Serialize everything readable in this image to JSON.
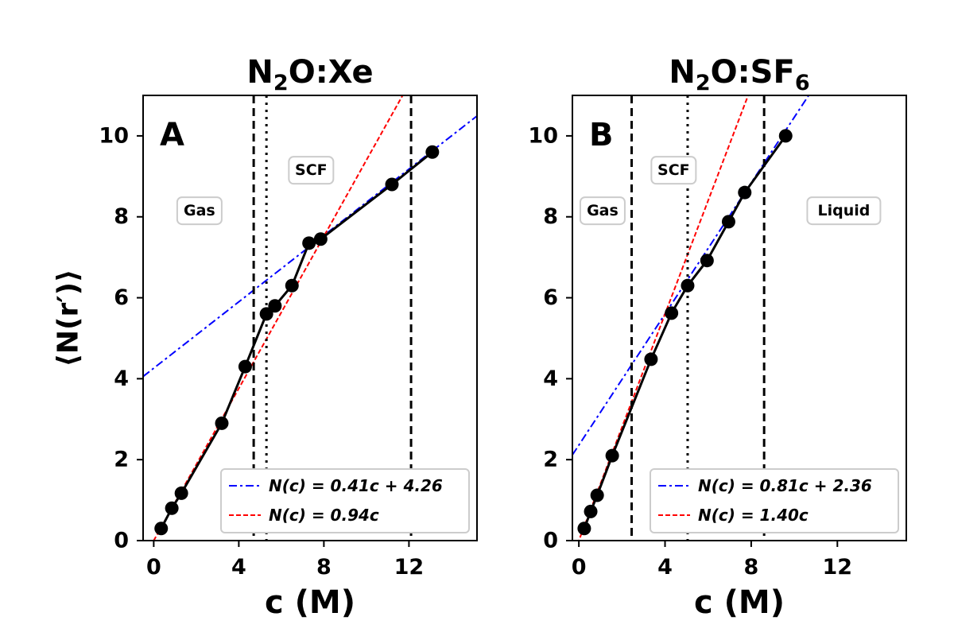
{
  "chart_data": [
    {
      "type": "line",
      "panel_label": "A",
      "title": "N₂O:Xe",
      "title_base": "N",
      "title_sub": "2",
      "title_rest": "O:Xe",
      "title_sub2": "",
      "xlabel": "c (M)",
      "ylabel": "⟨N(r′)⟩",
      "xlim": [
        -0.5,
        15.2
      ],
      "ylim": [
        0,
        11
      ],
      "xticks": [
        0,
        4,
        8,
        12
      ],
      "yticks": [
        0,
        2,
        4,
        6,
        8,
        10
      ],
      "grid": false,
      "series": [
        {
          "name": "data",
          "color": "#000000",
          "x": [
            0.35,
            0.85,
            1.3,
            3.2,
            4.3,
            5.3,
            5.7,
            6.5,
            7.3,
            7.85,
            11.2,
            13.1
          ],
          "y": [
            0.3,
            0.8,
            1.17,
            2.9,
            4.3,
            5.6,
            5.8,
            6.3,
            7.35,
            7.45,
            8.8,
            9.6
          ]
        }
      ],
      "fits": [
        {
          "label": "N(c) = 0.41c + 4.26",
          "slope": 0.41,
          "intercept": 4.26,
          "style": "dashdot",
          "color": "#0000ff"
        },
        {
          "label": "N(c) = 0.94c",
          "slope": 0.94,
          "intercept": 0,
          "style": "dashed",
          "color": "#ff0000"
        }
      ],
      "vlines": [
        {
          "x": 4.7,
          "style": "dashed"
        },
        {
          "x": 5.3,
          "style": "dotted"
        },
        {
          "x": 12.1,
          "style": "dashed"
        }
      ],
      "regions": [
        {
          "label": "Gas",
          "x": 2.15,
          "y": 8.15
        },
        {
          "label": "SCF",
          "x": 7.4,
          "y": 9.15
        }
      ],
      "legend_position": "lower-right"
    },
    {
      "type": "line",
      "panel_label": "B",
      "title": "N₂O:SF₆",
      "title_base": "N",
      "title_sub": "2",
      "title_rest": "O:SF",
      "title_sub2": "6",
      "xlabel": "c (M)",
      "ylabel": "",
      "xlim": [
        -0.3,
        15.2
      ],
      "ylim": [
        0,
        11
      ],
      "xticks": [
        0,
        4,
        8,
        12
      ],
      "yticks": [
        0,
        2,
        4,
        6,
        8,
        10
      ],
      "grid": false,
      "series": [
        {
          "name": "data",
          "color": "#000000",
          "x": [
            0.25,
            0.55,
            0.85,
            1.55,
            3.35,
            4.3,
            5.05,
            5.95,
            6.95,
            7.7,
            9.6
          ],
          "y": [
            0.3,
            0.72,
            1.12,
            2.1,
            4.48,
            5.62,
            6.3,
            6.92,
            7.88,
            8.6,
            10.0
          ]
        }
      ],
      "fits": [
        {
          "label": "N(c) = 0.81c + 2.36",
          "slope": 0.81,
          "intercept": 2.36,
          "style": "dashdot",
          "color": "#0000ff"
        },
        {
          "label": "N(c) = 1.40c",
          "slope": 1.4,
          "intercept": 0,
          "style": "dashed",
          "color": "#ff0000"
        }
      ],
      "vlines": [
        {
          "x": 2.45,
          "style": "dashed"
        },
        {
          "x": 5.05,
          "style": "dotted"
        },
        {
          "x": 8.6,
          "style": "dashed"
        }
      ],
      "regions": [
        {
          "label": "Gas",
          "x": 1.1,
          "y": 8.15
        },
        {
          "label": "SCF",
          "x": 4.4,
          "y": 9.15
        },
        {
          "label": "Liquid",
          "x": 12.3,
          "y": 8.15
        }
      ],
      "legend_position": "lower-right"
    }
  ]
}
